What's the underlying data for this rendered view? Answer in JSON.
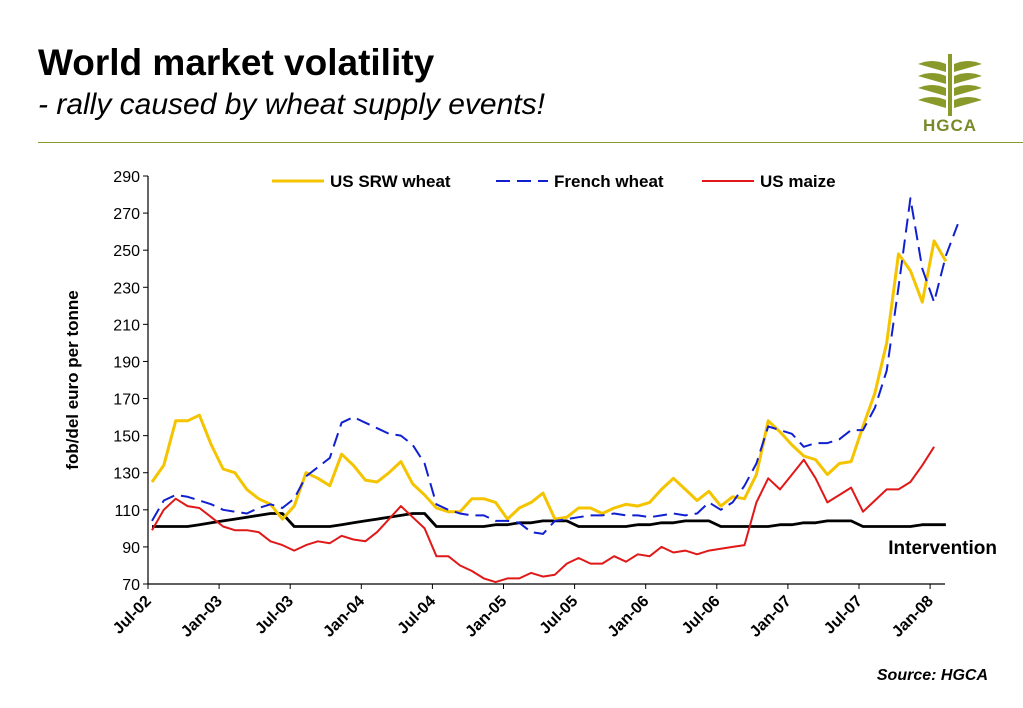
{
  "header": {
    "title": "World market volatility",
    "subtitle": "- rally caused by wheat supply events!"
  },
  "logo": {
    "text": "HGCA",
    "icon": "wheat-sheaf-icon",
    "color": "#8a9a2a"
  },
  "source": "Source: HGCA",
  "chart_data": {
    "type": "line",
    "ylabel": "fob/del euro per tonne",
    "xlabel": "",
    "ylim": [
      70,
      290
    ],
    "yticks": [
      70,
      90,
      110,
      130,
      150,
      170,
      190,
      210,
      230,
      250,
      270,
      290
    ],
    "grid": false,
    "legend_position": "top",
    "x_start": "Jul-02",
    "x_tick_labels": [
      "Jul-02",
      "Jan-03",
      "Jul-03",
      "Jan-04",
      "Jul-04",
      "Jan-05",
      "Jul-05",
      "Jan-06",
      "Jul-06",
      "Jan-07",
      "Jul-07",
      "Jan-08"
    ],
    "annotation": "Intervention",
    "series": [
      {
        "name": "US SRW wheat",
        "color": "#f5c400",
        "dash": "solid",
        "values": [
          125,
          134,
          158,
          158,
          161,
          145,
          132,
          130,
          121,
          116,
          113,
          105,
          112,
          130,
          127,
          123,
          140,
          134,
          126,
          125,
          130,
          136,
          124,
          118,
          111,
          109,
          109,
          116,
          116,
          114,
          105,
          111,
          114,
          119,
          105,
          106,
          111,
          111,
          108,
          111,
          113,
          112,
          114,
          121,
          127,
          121,
          115,
          120,
          112,
          117,
          116,
          129,
          158,
          152,
          145,
          139,
          137,
          129,
          135,
          136,
          155,
          173,
          200,
          248,
          239,
          222,
          255,
          244
        ]
      },
      {
        "name": "French wheat",
        "color": "#1020d0",
        "dash": "dashed",
        "values": [
          104,
          115,
          118,
          117,
          115,
          113,
          110,
          109,
          108,
          111,
          113,
          111,
          116,
          128,
          133,
          138,
          157,
          160,
          157,
          154,
          151,
          150,
          145,
          135,
          113,
          110,
          108,
          107,
          107,
          104,
          104,
          103,
          98,
          97,
          104,
          105,
          106,
          107,
          107,
          108,
          107,
          107,
          106,
          107,
          108,
          107,
          108,
          114,
          110,
          114,
          123,
          135,
          155,
          153,
          151,
          144,
          146,
          146,
          148,
          153,
          153,
          165,
          185,
          230,
          278,
          240,
          222,
          247,
          264
        ]
      },
      {
        "name": "US maize",
        "color": "#e01818",
        "dash": "solid",
        "values": [
          99,
          110,
          116,
          112,
          111,
          106,
          101,
          99,
          99,
          98,
          93,
          91,
          88,
          91,
          93,
          92,
          96,
          94,
          93,
          98,
          105,
          112,
          106,
          100,
          85,
          85,
          80,
          77,
          73,
          71,
          73,
          73,
          76,
          74,
          75,
          81,
          84,
          81,
          81,
          85,
          82,
          86,
          85,
          90,
          87,
          88,
          86,
          88,
          89,
          90,
          91,
          114,
          127,
          121,
          129,
          137,
          127,
          114,
          118,
          122,
          109,
          115,
          121,
          121,
          125,
          134,
          144
        ]
      },
      {
        "name": "Intervention",
        "color": "#000000",
        "dash": "solid",
        "values": [
          101,
          101,
          101,
          101,
          102,
          103,
          104,
          105,
          106,
          107,
          108,
          108,
          101,
          101,
          101,
          101,
          102,
          103,
          104,
          105,
          106,
          107,
          108,
          108,
          101,
          101,
          101,
          101,
          101,
          102,
          102,
          103,
          103,
          104,
          104,
          104,
          101,
          101,
          101,
          101,
          101,
          102,
          102,
          103,
          103,
          104,
          104,
          104,
          101,
          101,
          101,
          101,
          101,
          102,
          102,
          103,
          103,
          104,
          104,
          104,
          101,
          101,
          101,
          101,
          101,
          102,
          102,
          102
        ]
      }
    ]
  }
}
